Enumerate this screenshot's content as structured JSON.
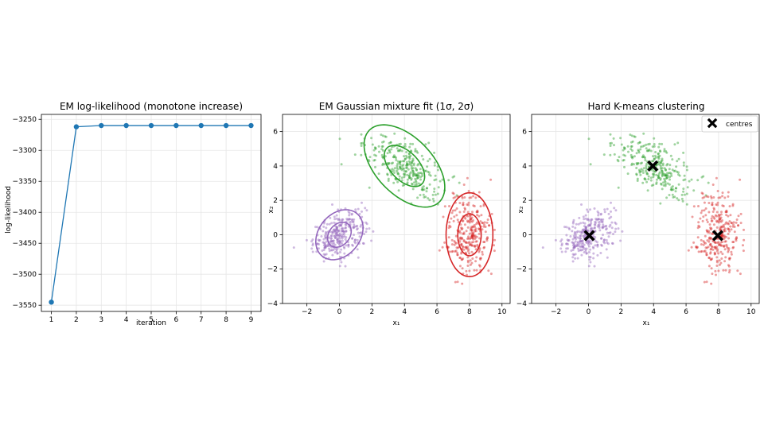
{
  "colors": {
    "line": "#1f77b4",
    "cluster_purple": "#9467bd",
    "cluster_green": "#2ca02c",
    "cluster_red": "#d62728",
    "centre": "#000000",
    "grid": "#e6e6e6"
  },
  "chart_data": [
    {
      "type": "line",
      "title": "EM log-likelihood (monotone increase)",
      "xlabel": "iteration",
      "ylabel": "log-likelihood",
      "x": [
        1,
        2,
        3,
        4,
        5,
        6,
        7,
        8,
        9
      ],
      "y": [
        -3545,
        -3262,
        -3260,
        -3260,
        -3260,
        -3260,
        -3260,
        -3260,
        -3260
      ],
      "xlim": [
        0.6,
        9.4
      ],
      "ylim": [
        -3560,
        -3242
      ],
      "xticks": [
        1,
        2,
        3,
        4,
        5,
        6,
        7,
        8,
        9
      ],
      "yticks": [
        -3550,
        -3500,
        -3450,
        -3400,
        -3350,
        -3300,
        -3250
      ],
      "grid": true,
      "marker": "circle"
    },
    {
      "type": "scatter",
      "title": "EM Gaussian mixture fit (1σ, 2σ)",
      "xlabel": "x₁",
      "ylabel": "x₂",
      "xlim": [
        -3.5,
        10.5
      ],
      "ylim": [
        -4,
        7
      ],
      "xticks": [
        -2,
        0,
        2,
        4,
        6,
        8,
        10
      ],
      "yticks": [
        -4,
        -2,
        0,
        2,
        4,
        6
      ],
      "grid": true,
      "clusters": [
        {
          "color": "cluster_purple",
          "mean": [
            0,
            0
          ],
          "sd": [
            0.8,
            0.7
          ],
          "rho": 0.4,
          "n": 300
        },
        {
          "color": "cluster_green",
          "mean": [
            4,
            4
          ],
          "sd": [
            1.2,
            0.95
          ],
          "rho": -0.6,
          "n": 300
        },
        {
          "color": "cluster_red",
          "mean": [
            8,
            0
          ],
          "sd": [
            0.7,
            1.25
          ],
          "rho": 0.0,
          "n": 300
        }
      ],
      "ellipses": [
        {
          "color": "cluster_purple",
          "center": [
            0,
            0
          ],
          "sigma_levels": [
            1,
            2
          ],
          "rx": 0.82,
          "ry": 0.62,
          "angle_deg": 45
        },
        {
          "color": "cluster_green",
          "center": [
            4,
            4
          ],
          "sigma_levels": [
            1,
            2
          ],
          "rx": 1.5,
          "ry": 0.85,
          "angle_deg": -43
        },
        {
          "color": "cluster_red",
          "center": [
            8,
            0
          ],
          "sigma_levels": [
            1,
            2
          ],
          "rx": 0.72,
          "ry": 1.22,
          "angle_deg": 0
        }
      ]
    },
    {
      "type": "scatter",
      "title": "Hard K-means clustering",
      "xlabel": "x₁",
      "ylabel": "x₂",
      "xlim": [
        -3.5,
        10.5
      ],
      "ylim": [
        -4,
        7
      ],
      "xticks": [
        -2,
        0,
        2,
        4,
        6,
        8,
        10
      ],
      "yticks": [
        -4,
        -2,
        0,
        2,
        4,
        6
      ],
      "grid": true,
      "legend": {
        "position": "top-right",
        "entries": [
          "centres"
        ]
      },
      "centres": [
        [
          0.05,
          -0.05
        ],
        [
          3.95,
          4.0
        ],
        [
          7.95,
          -0.05
        ]
      ]
    }
  ]
}
